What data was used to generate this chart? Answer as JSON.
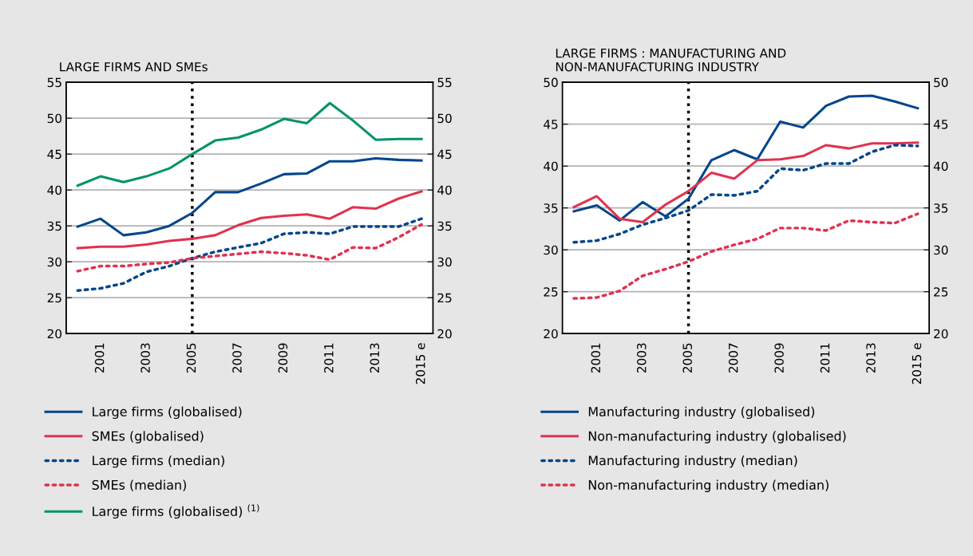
{
  "chart_data": [
    {
      "type": "line",
      "title": "LARGE FIRMS AND SMEs",
      "categories": [
        null,
        "2001",
        null,
        "2003",
        null,
        "2005",
        null,
        "2007",
        null,
        "2009",
        null,
        "2011",
        null,
        "2013",
        null,
        "2015 e"
      ],
      "series": [
        {
          "name": "Large firms (globalised)",
          "color": "#00468b",
          "line_style": "solid",
          "values": [
            34.9,
            36.0,
            33.7,
            34.1,
            35.0,
            36.8,
            39.7,
            39.7,
            40.9,
            42.2,
            42.3,
            44.0,
            44.0,
            44.4,
            44.2,
            44.1
          ]
        },
        {
          "name": "SMEs (globalised)",
          "color": "#e0324f",
          "line_style": "solid",
          "values": [
            31.9,
            32.1,
            32.1,
            32.4,
            32.9,
            33.2,
            33.7,
            35.1,
            36.1,
            36.4,
            36.6,
            36.0,
            37.6,
            37.4,
            38.8,
            39.8
          ]
        },
        {
          "name": "Large firms (median)",
          "color": "#00468b",
          "line_style": "dotted",
          "values": [
            26.0,
            26.3,
            27.0,
            28.6,
            29.4,
            30.5,
            31.4,
            32.0,
            32.6,
            33.9,
            34.1,
            33.9,
            34.9,
            34.9,
            34.9,
            36.0
          ]
        },
        {
          "name": "SMEs (median)",
          "color": "#e0324f",
          "line_style": "dotted",
          "values": [
            28.7,
            29.4,
            29.4,
            29.7,
            29.9,
            30.5,
            30.8,
            31.1,
            31.4,
            31.2,
            30.9,
            30.3,
            32.0,
            31.9,
            33.4,
            35.2
          ]
        },
        {
          "name": "Large firms (globalised) $^{(1)}$",
          "color": "#00936a",
          "line_style": "solid",
          "values": [
            40.6,
            41.9,
            41.1,
            41.9,
            43.0,
            45.0,
            46.9,
            47.3,
            48.4,
            49.9,
            49.3,
            52.1,
            49.7,
            47.0,
            47.1,
            47.1
          ]
        }
      ],
      "ylim": [
        20,
        55
      ],
      "yticks": [
        20,
        25,
        30,
        35,
        40,
        45,
        50,
        55
      ],
      "y2lim": [
        20,
        55
      ],
      "y2ticks": [
        20,
        25,
        30,
        35,
        40,
        45,
        50,
        55
      ],
      "ref_lines": [
        {
          "axis": "x",
          "value": "2005",
          "color": "#000000",
          "line_style": "dotted"
        }
      ],
      "grid": "y",
      "legend": "bottom",
      "marker": "none"
    },
    {
      "type": "line",
      "title": "LARGE FIRMS : MANUFACTURING AND\nNON-MANUFACTURING INDUSTRY",
      "categories": [
        null,
        "2001",
        null,
        "2003",
        null,
        "2005",
        null,
        "2007",
        null,
        "2009",
        null,
        "2011",
        null,
        "2013",
        null,
        "2015 e"
      ],
      "series": [
        {
          "name": "Manufacturing industry (globalised)",
          "color": "#00468b",
          "line_style": "solid",
          "values": [
            34.6,
            35.3,
            33.5,
            35.7,
            34.0,
            36.1,
            40.7,
            41.9,
            40.8,
            45.3,
            44.6,
            47.2,
            48.3,
            48.4,
            47.7,
            46.9
          ]
        },
        {
          "name": "Non-manufacturing industry (globalised)",
          "color": "#e0324f",
          "line_style": "solid",
          "values": [
            35.1,
            36.4,
            33.7,
            33.3,
            35.4,
            37.0,
            39.2,
            38.5,
            40.7,
            40.8,
            41.2,
            42.5,
            42.1,
            42.7,
            42.7,
            42.8
          ]
        },
        {
          "name": "Manufacturing industry (median)",
          "color": "#00468b",
          "line_style": "dotted",
          "values": [
            30.9,
            31.1,
            31.9,
            33.0,
            33.8,
            34.7,
            36.6,
            36.5,
            37.0,
            39.7,
            39.5,
            40.3,
            40.3,
            41.7,
            42.5,
            42.4
          ]
        },
        {
          "name": "Non-manufacturing industry (median)",
          "color": "#e0324f",
          "line_style": "dotted",
          "values": [
            24.2,
            24.3,
            25.1,
            26.9,
            27.7,
            28.6,
            29.8,
            30.6,
            31.3,
            32.6,
            32.6,
            32.3,
            33.5,
            33.3,
            33.2,
            34.3
          ]
        }
      ],
      "ylim": [
        20,
        50
      ],
      "yticks": [
        20,
        25,
        30,
        35,
        40,
        45,
        50
      ],
      "y2lim": [
        20,
        50
      ],
      "y2ticks": [
        20,
        25,
        30,
        35,
        40,
        45,
        50
      ],
      "ref_lines": [
        {
          "axis": "x",
          "value": "2005",
          "color": "#000000",
          "line_style": "dotted"
        }
      ],
      "grid": "y",
      "legend": "bottom",
      "marker": "none"
    }
  ]
}
